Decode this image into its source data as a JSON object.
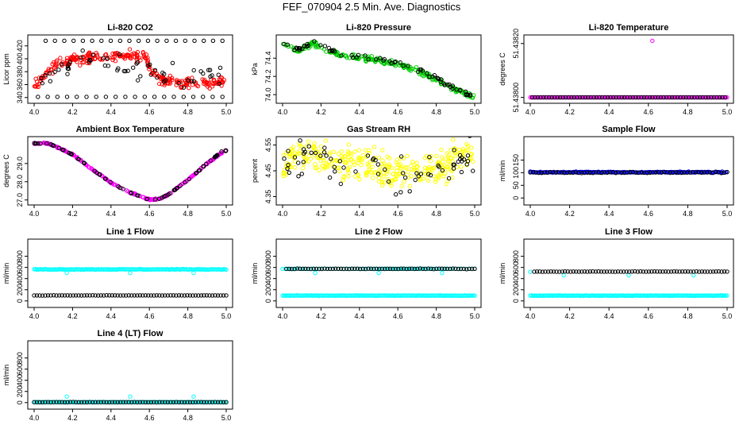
{
  "page": {
    "title": "FEF_070904  2.5 Min. Ave. Diagnostics"
  },
  "colors": {
    "black": "#000000",
    "red": "#ff0000",
    "green": "#00cc00",
    "magenta": "#ff00ff",
    "yellow": "#ffff00",
    "blue": "#0000ff",
    "cyan": "#00ffff"
  },
  "chart_data": [
    {
      "id": "li820-co2",
      "type": "scatter",
      "title": "Li-820 CO2",
      "ylabel": "Licor ppm",
      "xlim": [
        4.0,
        5.0
      ],
      "ylim": [
        336,
        432
      ],
      "xticks": [
        4.0,
        4.2,
        4.4,
        4.6,
        4.8,
        5.0
      ],
      "xtick_labels": [
        "4.0",
        "4.2",
        "4.4",
        "4.6",
        "4.8",
        "5.0"
      ],
      "yticks": [
        340,
        360,
        380,
        400,
        420
      ],
      "ytick_labels": [
        "340",
        "360",
        "380",
        "400",
        "420"
      ],
      "series": [
        {
          "color": "red",
          "kind": "band",
          "anchors": [
            [
              4.0,
              361
            ],
            [
              4.04,
              368
            ],
            [
              4.08,
              382
            ],
            [
              4.12,
              392
            ],
            [
              4.2,
              398
            ],
            [
              4.3,
              402
            ],
            [
              4.4,
              404
            ],
            [
              4.5,
              405
            ],
            [
              4.58,
              404
            ],
            [
              4.62,
              374
            ],
            [
              4.66,
              368
            ],
            [
              4.72,
              364
            ],
            [
              4.8,
              363
            ],
            [
              4.9,
              363
            ],
            [
              5.0,
              364
            ]
          ],
          "spread": 12,
          "n": 260
        },
        {
          "color": "black",
          "kind": "band",
          "anchors": [
            [
              4.0,
              362
            ],
            [
              4.1,
              385
            ],
            [
              4.3,
              395
            ],
            [
              4.5,
              395
            ],
            [
              4.6,
              380
            ],
            [
              4.8,
              376
            ],
            [
              5.0,
              372
            ]
          ],
          "spread": 26,
          "n": 60
        },
        {
          "color": "black",
          "kind": "line",
          "y": 428,
          "x0": 4.06,
          "x1": 4.98,
          "n": 20
        },
        {
          "color": "black",
          "kind": "line",
          "y": 341,
          "x0": 4.02,
          "x1": 4.98,
          "n": 20
        }
      ]
    },
    {
      "id": "li820-pressure",
      "type": "scatter",
      "title": "Li-820 Pressure",
      "ylabel": "kPa",
      "xlim": [
        4.0,
        5.0
      ],
      "ylim": [
        73.94,
        74.62
      ],
      "xticks": [
        4.0,
        4.2,
        4.4,
        4.6,
        4.8,
        5.0
      ],
      "xtick_labels": [
        "4.0",
        "4.2",
        "4.4",
        "4.6",
        "4.8",
        "5.0"
      ],
      "yticks": [
        74.0,
        74.2,
        74.4
      ],
      "ytick_labels": [
        "74.0",
        "74.2",
        "74.4"
      ],
      "series": [
        {
          "color": "green",
          "kind": "band",
          "anchors": [
            [
              4.0,
              74.55
            ],
            [
              4.04,
              74.53
            ],
            [
              4.08,
              74.48
            ],
            [
              4.12,
              74.52
            ],
            [
              4.16,
              74.57
            ],
            [
              4.2,
              74.5
            ],
            [
              4.3,
              74.44
            ],
            [
              4.4,
              74.4
            ],
            [
              4.5,
              74.38
            ],
            [
              4.6,
              74.33
            ],
            [
              4.7,
              74.27
            ],
            [
              4.78,
              74.18
            ],
            [
              4.84,
              74.12
            ],
            [
              4.9,
              74.06
            ],
            [
              4.96,
              74.0
            ],
            [
              5.0,
              73.97
            ]
          ],
          "spread": 0.04,
          "n": 220
        },
        {
          "color": "black",
          "kind": "band",
          "anchors": [
            [
              4.0,
              74.55
            ],
            [
              4.08,
              74.49
            ],
            [
              4.16,
              74.58
            ],
            [
              4.3,
              74.44
            ],
            [
              4.5,
              74.39
            ],
            [
              4.7,
              74.28
            ],
            [
              4.84,
              74.13
            ],
            [
              5.0,
              73.97
            ]
          ],
          "spread": 0.04,
          "n": 70
        }
      ]
    },
    {
      "id": "li820-temperature",
      "type": "scatter",
      "title": "Li-820 Temperature",
      "ylabel": "degrees C",
      "xlim": [
        4.0,
        5.0
      ],
      "ylim": [
        51.43799,
        51.43822
      ],
      "xticks": [
        4.0,
        4.2,
        4.4,
        4.6,
        4.8,
        5.0
      ],
      "xtick_labels": [
        "4.0",
        "4.2",
        "4.4",
        "4.6",
        "4.8",
        "5.0"
      ],
      "yticks": [
        51.438,
        51.4382
      ],
      "ytick_labels": [
        "51.43800",
        "51.43820"
      ],
      "series": [
        {
          "color": "magenta",
          "kind": "line",
          "y": 51.438,
          "x0": 4.0,
          "x1": 5.0,
          "n": 150
        },
        {
          "color": "black",
          "kind": "line",
          "y": 51.438,
          "x0": 4.01,
          "x1": 4.99,
          "n": 70
        },
        {
          "color": "magenta",
          "kind": "points",
          "points": [
            [
              4.62,
              51.43821
            ]
          ]
        }
      ]
    },
    {
      "id": "ambient-box-temperature",
      "type": "scatter",
      "title": "Ambient Box Temperature",
      "ylabel": "degrees C",
      "xlim": [
        4.0,
        5.0
      ],
      "ylim": [
        26.9,
        30.3
      ],
      "xticks": [
        4.0,
        4.2,
        4.4,
        4.6,
        4.8,
        5.0
      ],
      "xtick_labels": [
        "4.0",
        "4.2",
        "4.4",
        "4.6",
        "4.8",
        "5.0"
      ],
      "yticks": [
        27.0,
        28.0,
        29.0
      ],
      "ytick_labels": [
        "27.0",
        "28.0",
        "29.0"
      ],
      "series": [
        {
          "color": "magenta",
          "kind": "band",
          "anchors": [
            [
              4.0,
              30.1
            ],
            [
              4.06,
              30.12
            ],
            [
              4.1,
              30.0
            ],
            [
              4.2,
              29.5
            ],
            [
              4.3,
              28.7
            ],
            [
              4.4,
              27.95
            ],
            [
              4.5,
              27.4
            ],
            [
              4.6,
              27.02
            ],
            [
              4.65,
              27.05
            ],
            [
              4.7,
              27.3
            ],
            [
              4.8,
              28.1
            ],
            [
              4.9,
              29.0
            ],
            [
              5.0,
              29.75
            ]
          ],
          "spread": 0.05,
          "n": 220
        },
        {
          "color": "black",
          "kind": "band",
          "anchors": [
            [
              4.0,
              30.1
            ],
            [
              4.06,
              30.12
            ],
            [
              4.1,
              30.0
            ],
            [
              4.2,
              29.5
            ],
            [
              4.3,
              28.7
            ],
            [
              4.4,
              27.95
            ],
            [
              4.5,
              27.4
            ],
            [
              4.6,
              27.02
            ],
            [
              4.65,
              27.05
            ],
            [
              4.7,
              27.3
            ],
            [
              4.8,
              28.1
            ],
            [
              4.9,
              29.0
            ],
            [
              4.98,
              29.7
            ]
          ],
          "spread": 0.04,
          "n": 70
        }
      ]
    },
    {
      "id": "gas-stream-rh",
      "type": "scatter",
      "title": "Gas Stream RH",
      "ylabel": "percent",
      "xlim": [
        4.0,
        5.0
      ],
      "ylim": [
        4.33,
        4.57
      ],
      "xticks": [
        4.0,
        4.2,
        4.4,
        4.6,
        4.8,
        5.0
      ],
      "xtick_labels": [
        "4.0",
        "4.2",
        "4.4",
        "4.6",
        "4.8",
        "5.0"
      ],
      "yticks": [
        4.35,
        4.45,
        4.55
      ],
      "ytick_labels": [
        "4.35",
        "4.45",
        "4.55"
      ],
      "series": [
        {
          "color": "yellow",
          "kind": "band",
          "anchors": [
            [
              4.0,
              4.47
            ],
            [
              4.1,
              4.52
            ],
            [
              4.2,
              4.5
            ],
            [
              4.3,
              4.48
            ],
            [
              4.4,
              4.47
            ],
            [
              4.5,
              4.46
            ],
            [
              4.6,
              4.44
            ],
            [
              4.7,
              4.45
            ],
            [
              4.8,
              4.47
            ],
            [
              4.9,
              4.5
            ],
            [
              5.0,
              4.52
            ]
          ],
          "spread": 0.1,
          "n": 340
        },
        {
          "color": "black",
          "kind": "band",
          "anchors": [
            [
              4.0,
              4.47
            ],
            [
              4.1,
              4.51
            ],
            [
              4.3,
              4.47
            ],
            [
              4.5,
              4.45
            ],
            [
              4.65,
              4.42
            ],
            [
              4.8,
              4.46
            ],
            [
              5.0,
              4.51
            ]
          ],
          "spread": 0.1,
          "n": 70
        }
      ]
    },
    {
      "id": "sample-flow",
      "type": "scatter",
      "title": "Sample Flow",
      "ylabel": "ml/min",
      "xlim": [
        4.0,
        5.0
      ],
      "ylim": [
        -15,
        230
      ],
      "xticks": [
        4.0,
        4.2,
        4.4,
        4.6,
        4.8,
        5.0
      ],
      "xtick_labels": [
        "4.0",
        "4.2",
        "4.4",
        "4.6",
        "4.8",
        "5.0"
      ],
      "yticks": [
        0,
        50,
        100,
        150
      ],
      "ytick_labels": [
        "0",
        "50",
        "100",
        "150"
      ],
      "series": [
        {
          "color": "blue",
          "kind": "line",
          "y": 102,
          "x0": 4.0,
          "x1": 5.0,
          "n": 160,
          "jitter": 3
        },
        {
          "color": "black",
          "kind": "line",
          "y": 101,
          "x0": 4.0,
          "x1": 5.0,
          "n": 70,
          "jitter": 3
        }
      ]
    },
    {
      "id": "line-1-flow",
      "type": "scatter",
      "title": "Line 1 Flow",
      "ylabel": "ml/min",
      "xlim": [
        4.0,
        5.0
      ],
      "ylim": [
        -60,
        1050
      ],
      "xticks": [
        4.0,
        4.2,
        4.4,
        4.6,
        4.8,
        5.0
      ],
      "xtick_labels": [
        "4.0",
        "4.2",
        "4.4",
        "4.6",
        "4.8",
        "5.0"
      ],
      "yticks": [
        0,
        200,
        400,
        600,
        800
      ],
      "ytick_labels": [
        "0",
        "200",
        "400",
        "600",
        "800"
      ],
      "series": [
        {
          "color": "cyan",
          "kind": "line",
          "y": 565,
          "x0": 4.0,
          "x1": 5.0,
          "n": 160,
          "jitter": 8
        },
        {
          "color": "cyan",
          "kind": "points",
          "points": [
            [
              4.17,
              500
            ],
            [
              4.5,
              500
            ],
            [
              4.83,
              500
            ]
          ]
        },
        {
          "color": "black",
          "kind": "line",
          "y": 98,
          "x0": 4.0,
          "x1": 5.0,
          "n": 70,
          "jitter": 4
        }
      ]
    },
    {
      "id": "line-2-flow",
      "type": "scatter",
      "title": "Line 2 Flow",
      "ylabel": "ml/min",
      "xlim": [
        4.0,
        5.0
      ],
      "ylim": [
        -60,
        1050
      ],
      "xticks": [
        4.0,
        4.2,
        4.4,
        4.6,
        4.8,
        5.0
      ],
      "xtick_labels": [
        "4.0",
        "4.2",
        "4.4",
        "4.6",
        "4.8",
        "5.0"
      ],
      "yticks": [
        0,
        200,
        400,
        600,
        800
      ],
      "ytick_labels": [
        "0",
        "200",
        "400",
        "600",
        "800"
      ],
      "series": [
        {
          "color": "cyan",
          "kind": "line",
          "y": 95,
          "x0": 4.0,
          "x1": 5.0,
          "n": 160,
          "jitter": 6
        },
        {
          "color": "cyan",
          "kind": "line",
          "y": 575,
          "x0": 4.0,
          "x1": 5.0,
          "n": 70,
          "jitter": 6
        },
        {
          "color": "cyan",
          "kind": "points",
          "points": [
            [
              4.17,
              500
            ],
            [
              4.5,
              500
            ],
            [
              4.83,
              500
            ]
          ]
        },
        {
          "color": "black",
          "kind": "line",
          "y": 575,
          "x0": 4.02,
          "x1": 5.0,
          "n": 70,
          "jitter": 6
        }
      ]
    },
    {
      "id": "line-3-flow",
      "type": "scatter",
      "title": "Line 3 Flow",
      "ylabel": "ml/min",
      "xlim": [
        4.0,
        5.0
      ],
      "ylim": [
        -60,
        1050
      ],
      "xticks": [
        4.0,
        4.2,
        4.4,
        4.6,
        4.8,
        5.0
      ],
      "xtick_labels": [
        "4.0",
        "4.2",
        "4.4",
        "4.6",
        "4.8",
        "5.0"
      ],
      "yticks": [
        0,
        200,
        400,
        600,
        800
      ],
      "ytick_labels": [
        "0",
        "200",
        "400",
        "600",
        "800"
      ],
      "series": [
        {
          "color": "cyan",
          "kind": "line",
          "y": 95,
          "x0": 4.0,
          "x1": 5.0,
          "n": 160,
          "jitter": 6
        },
        {
          "color": "cyan",
          "kind": "points",
          "points": [
            [
              4.0,
              520
            ],
            [
              4.17,
              460
            ],
            [
              4.5,
              460
            ],
            [
              4.83,
              460
            ]
          ]
        },
        {
          "color": "black",
          "kind": "line",
          "y": 525,
          "x0": 4.02,
          "x1": 5.0,
          "n": 70,
          "jitter": 6
        }
      ]
    },
    {
      "id": "line-4-lt-flow",
      "type": "scatter",
      "title": "Line 4 (LT) Flow",
      "ylabel": "ml/min",
      "xlim": [
        4.0,
        5.0
      ],
      "ylim": [
        -60,
        1050
      ],
      "xticks": [
        4.0,
        4.2,
        4.4,
        4.6,
        4.8,
        5.0
      ],
      "xtick_labels": [
        "4.0",
        "4.2",
        "4.4",
        "4.6",
        "4.8",
        "5.0"
      ],
      "yticks": [
        0,
        200,
        400,
        600,
        800
      ],
      "ytick_labels": [
        "0",
        "200",
        "400",
        "600",
        "800"
      ],
      "series": [
        {
          "color": "cyan",
          "kind": "line",
          "y": 8,
          "x0": 4.0,
          "x1": 5.0,
          "n": 160,
          "jitter": 3
        },
        {
          "color": "cyan",
          "kind": "points",
          "points": [
            [
              4.17,
              110
            ],
            [
              4.5,
              110
            ],
            [
              4.83,
              110
            ]
          ]
        },
        {
          "color": "black",
          "kind": "line",
          "y": 8,
          "x0": 4.0,
          "x1": 5.0,
          "n": 70,
          "jitter": 3
        }
      ]
    }
  ]
}
